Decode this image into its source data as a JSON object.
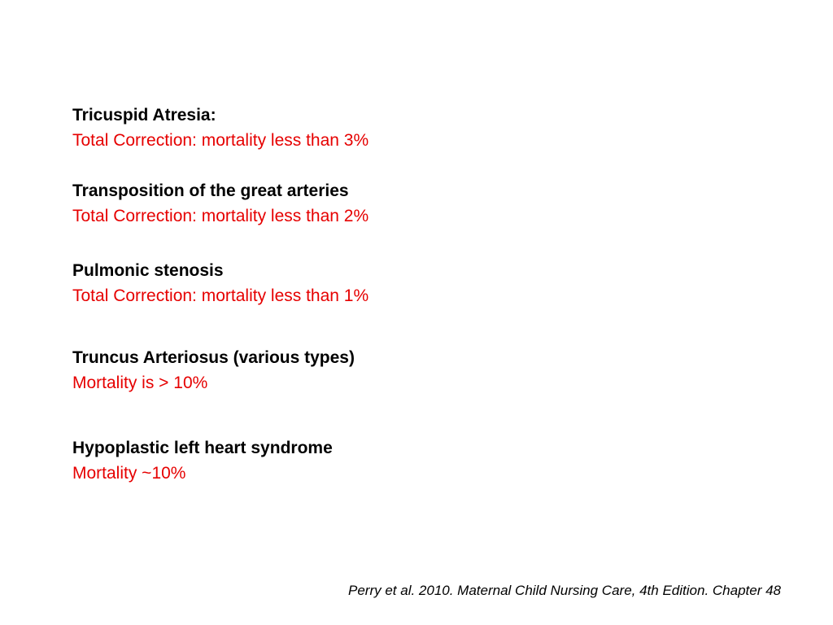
{
  "entries": [
    {
      "title": "Tricuspid Atresia:",
      "note": "Total Correction: mortality less than 3%"
    },
    {
      "title": "Transposition of the great arteries",
      "note": "Total Correction: mortality less than 2%"
    },
    {
      "title": "Pulmonic stenosis",
      "note": "Total Correction: mortality less than 1%"
    },
    {
      "title": "Truncus Arteriosus (various types)",
      "note": "Mortality is > 10%"
    },
    {
      "title": "Hypoplastic left heart syndrome",
      "note": "Mortality ~10%"
    }
  ],
  "citation": "Perry et al. 2010. Maternal Child Nursing Care, 4th Edition. Chapter 48",
  "colors": {
    "title": "#000000",
    "note": "#e60000",
    "background": "#ffffff"
  }
}
